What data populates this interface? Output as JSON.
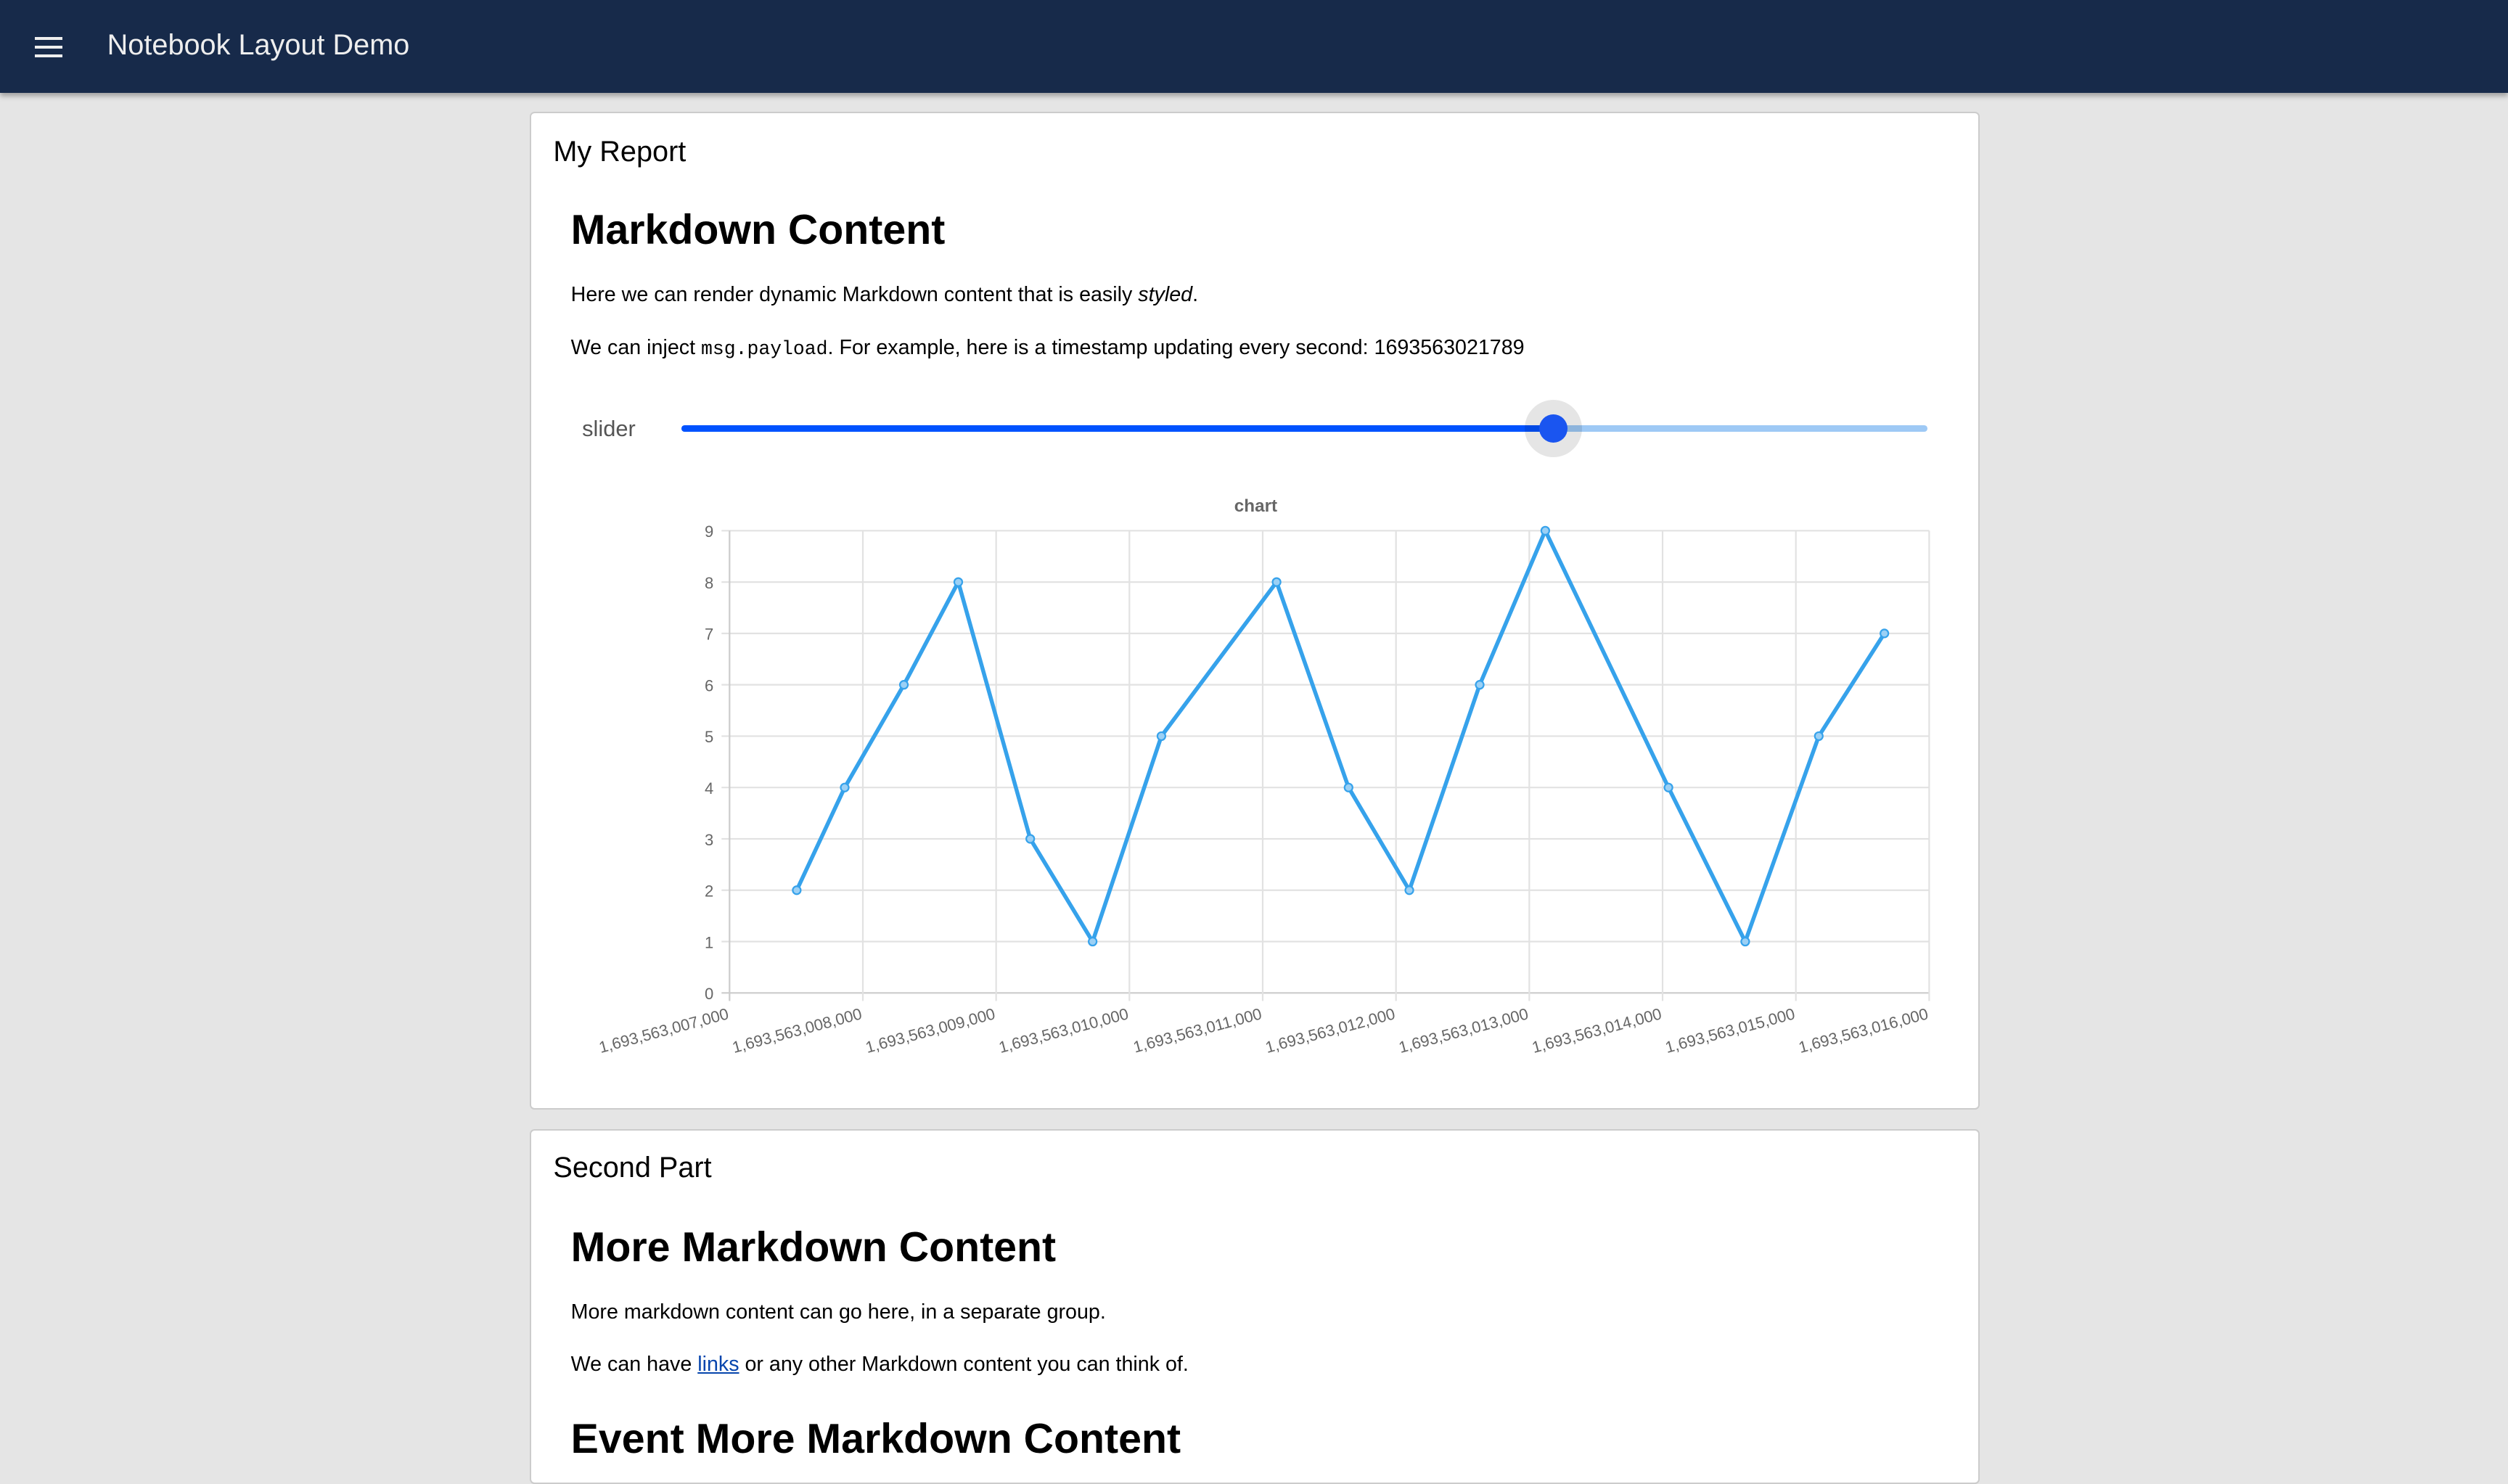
{
  "header": {
    "title": "Notebook Layout Demo",
    "menu_icon": "hamburger-menu-icon"
  },
  "group1": {
    "title": "My Report",
    "heading": "Markdown Content",
    "para1_pre": "Here we can render dynamic Markdown content that is easily ",
    "para1_em": "styled",
    "para1_post": ".",
    "para2_pre": "We can inject ",
    "para2_code": "msg.payload",
    "para2_post": ". For example, here is a timestamp updating every second: ",
    "timestamp": "1693563021789",
    "slider": {
      "label": "slider",
      "value_fraction": 0.7,
      "fill_color": "#0052ff",
      "track_color": "#9ec9f5"
    }
  },
  "chart_data": {
    "type": "line",
    "title": "chart",
    "line_color": "#36a2eb",
    "grid": true,
    "xlim": [
      1693563007000,
      1693563016000
    ],
    "ylim": [
      0,
      9
    ],
    "x_tick_labels": [
      "1,693,563,007,000",
      "1,693,563,008,000",
      "1,693,563,009,000",
      "1,693,563,010,000",
      "1,693,563,011,000",
      "1,693,563,012,000",
      "1,693,563,013,000",
      "1,693,563,014,000",
      "1,693,563,015,000",
      "1,693,563,016,000"
    ],
    "y_tick_labels": [
      "0",
      "1",
      "2",
      "3",
      "4",
      "5",
      "6",
      "7",
      "8",
      "9"
    ],
    "series": [
      {
        "x": [
          1693563007504,
          1693563007864,
          1693563008308,
          1693563008716,
          1693563009256,
          1693563009724,
          1693563010240,
          1693563011104,
          1693563011644,
          1693563012100,
          1693563012628,
          1693563013120,
          1693563014044,
          1693563014620,
          1693563015172,
          1693563015664
        ],
        "y": [
          2,
          4,
          6,
          8,
          3,
          1,
          5,
          8,
          4,
          2,
          6,
          9,
          4,
          1,
          5,
          7
        ]
      }
    ]
  },
  "group2": {
    "title": "Second Part",
    "heading": "More Markdown Content",
    "para1": "More markdown content can go here, in a separate group.",
    "para2_pre": "We can have ",
    "para2_link": "links",
    "para2_post": " or any other Markdown content you can think of.",
    "heading2": "Event More Markdown Content"
  }
}
